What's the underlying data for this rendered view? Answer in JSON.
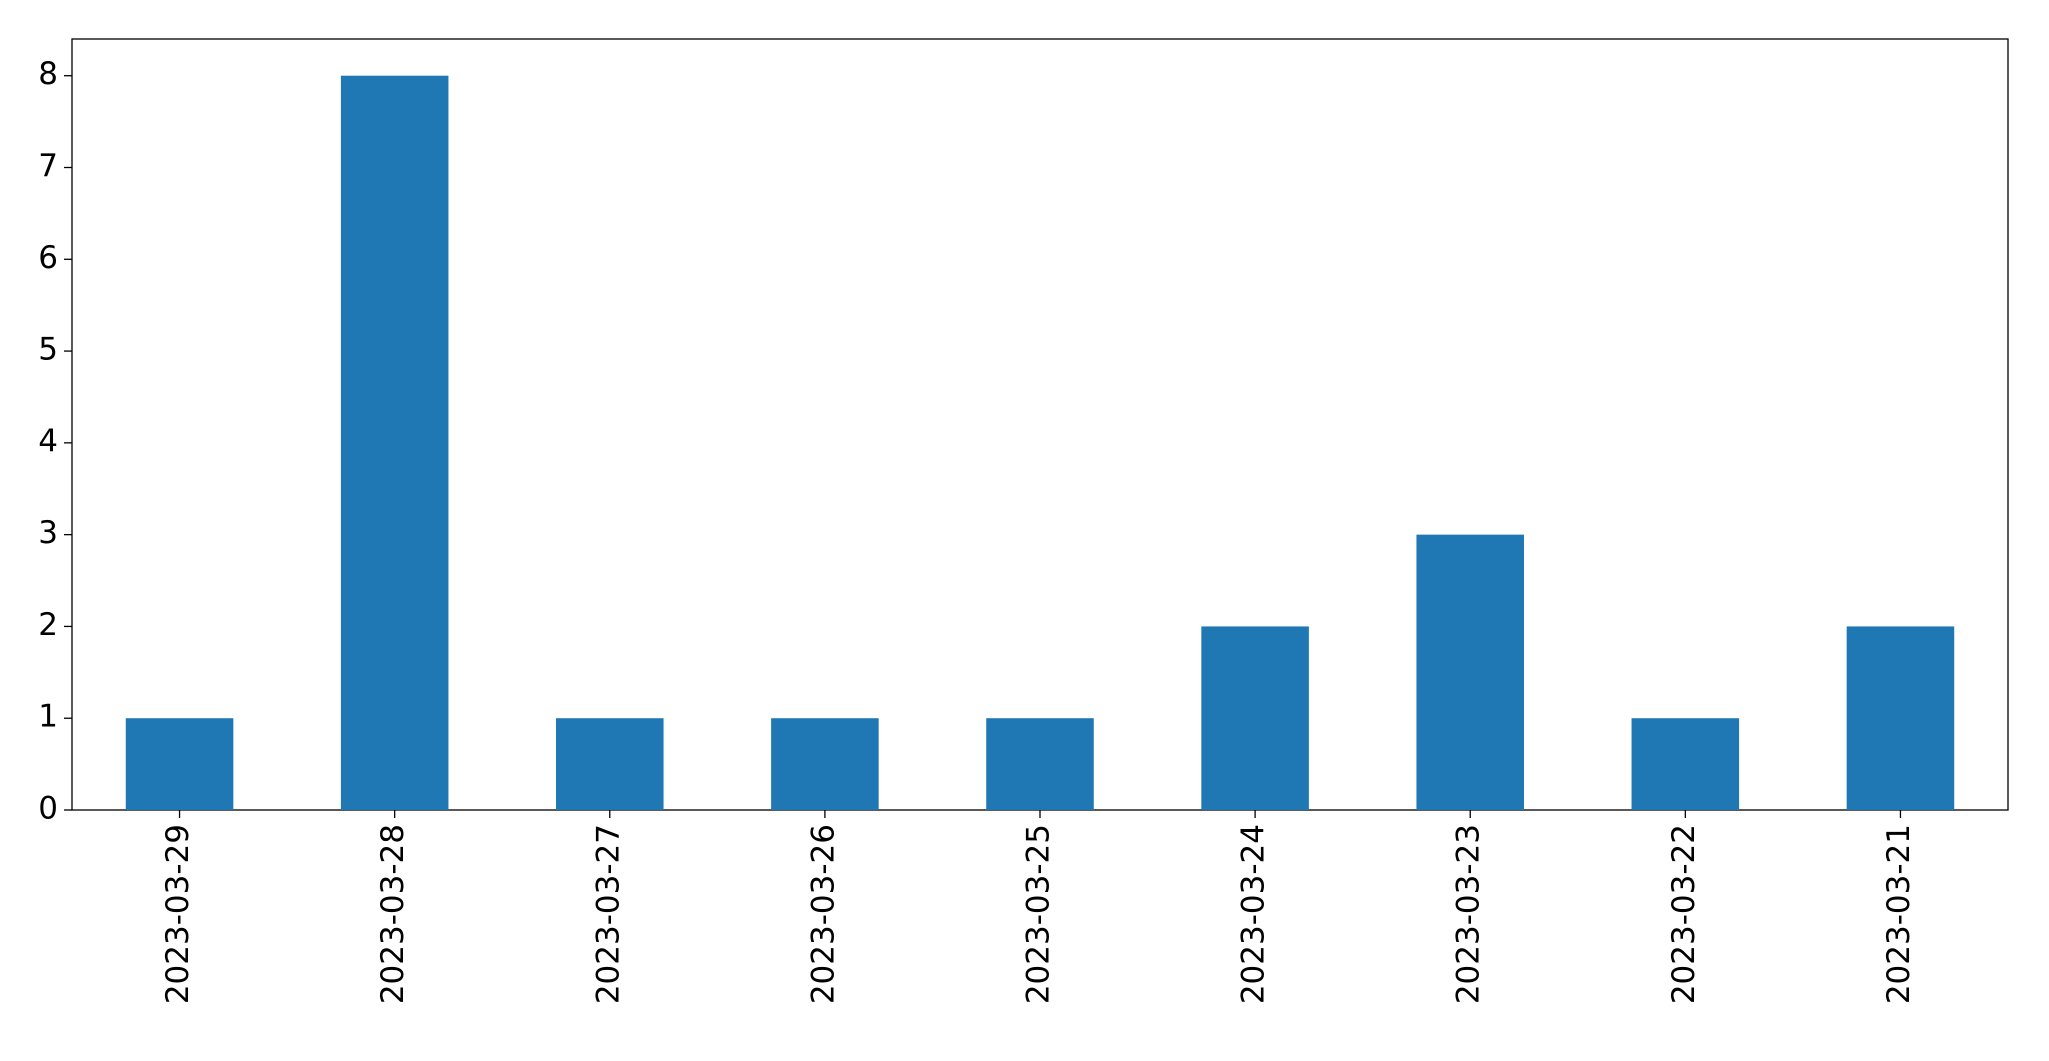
{
  "chart_data": {
    "type": "bar",
    "categories": [
      "2023-03-29",
      "2023-03-28",
      "2023-03-27",
      "2023-03-26",
      "2023-03-25",
      "2023-03-24",
      "2023-03-23",
      "2023-03-22",
      "2023-03-21"
    ],
    "values": [
      1,
      8,
      1,
      1,
      1,
      2,
      3,
      1,
      2
    ],
    "color": "#1f77b4",
    "ylim": [
      0,
      8.4
    ],
    "yticks": [
      0,
      1,
      2,
      3,
      4,
      5,
      6,
      7,
      8
    ],
    "grid": false
  }
}
